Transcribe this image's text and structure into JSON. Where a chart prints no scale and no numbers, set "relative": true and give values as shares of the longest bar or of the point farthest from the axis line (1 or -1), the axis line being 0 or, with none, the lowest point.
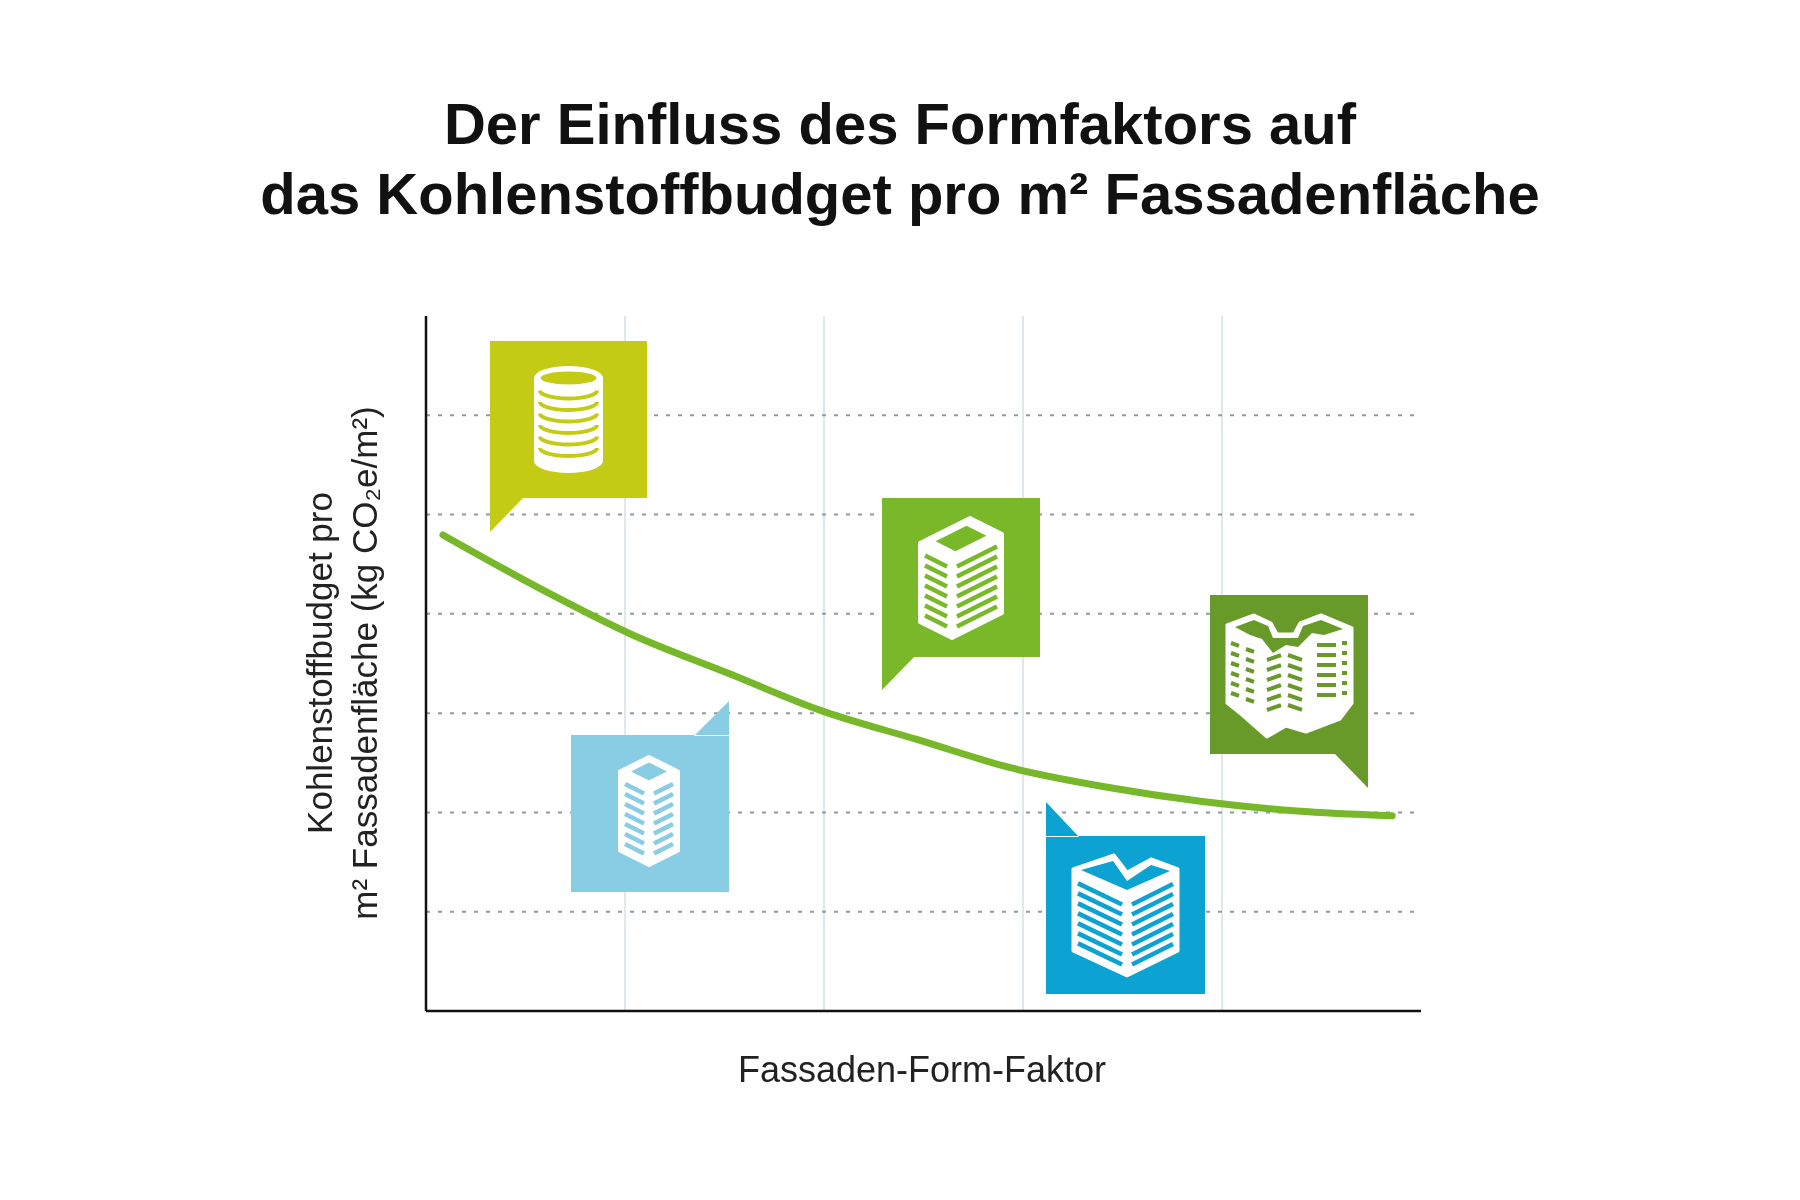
{
  "chart_data": {
    "type": "line",
    "title": "Der Einfluss des Formfaktors auf\ndas Kohlenstoffbudget pro m² Fassadenfläche",
    "xlabel": "Fassaden-Form-Faktor",
    "ylabel": "Kohlenstoffbudget pro\nm² Fassadenfläche (kg CO₂e/m²)",
    "categories": [
      null,
      null,
      null,
      null,
      null,
      null,
      null,
      null,
      null,
      null,
      null
    ],
    "series": [
      {
        "color": "#76b82a",
        "values": [
          1,
          0.89,
          0.79,
          0.71,
          0.63,
          0.57,
          0.51,
          0.47,
          0.44,
          0.42,
          0.41
        ]
      }
    ],
    "relative": true,
    "grid": true,
    "tick_labels": false
  }
}
